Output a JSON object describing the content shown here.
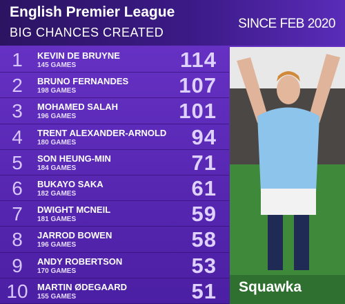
{
  "header": {
    "title": "English Premier League",
    "subtitle": "BIG CHANCES CREATED",
    "period": "SINCE FEB 2020"
  },
  "rows": [
    {
      "rank": 1,
      "name": "KEVIN DE BRUYNE",
      "games": "145 GAMES",
      "value": 114
    },
    {
      "rank": 2,
      "name": "BRUNO FERNANDES",
      "games": "198 GAMES",
      "value": 107
    },
    {
      "rank": 3,
      "name": "MOHAMED SALAH",
      "games": "196 GAMES",
      "value": 101
    },
    {
      "rank": 4,
      "name": "TRENT ALEXANDER-ARNOLD",
      "games": "180 GAMES",
      "value": 94
    },
    {
      "rank": 5,
      "name": "SON HEUNG-MIN",
      "games": "184 GAMES",
      "value": 71
    },
    {
      "rank": 6,
      "name": "BUKAYO SAKA",
      "games": "182 GAMES",
      "value": 61
    },
    {
      "rank": 7,
      "name": "DWIGHT MCNEIL",
      "games": "181 GAMES",
      "value": 59
    },
    {
      "rank": 8,
      "name": "JARROD BOWEN",
      "games": "196 GAMES",
      "value": 58
    },
    {
      "rank": 9,
      "name": "ANDY ROBERTSON",
      "games": "170 GAMES",
      "value": 53
    },
    {
      "rank": 10,
      "name": "MARTIN ØDEGAARD",
      "games": "155 GAMES",
      "value": 51
    }
  ],
  "brand": "Squawka"
}
